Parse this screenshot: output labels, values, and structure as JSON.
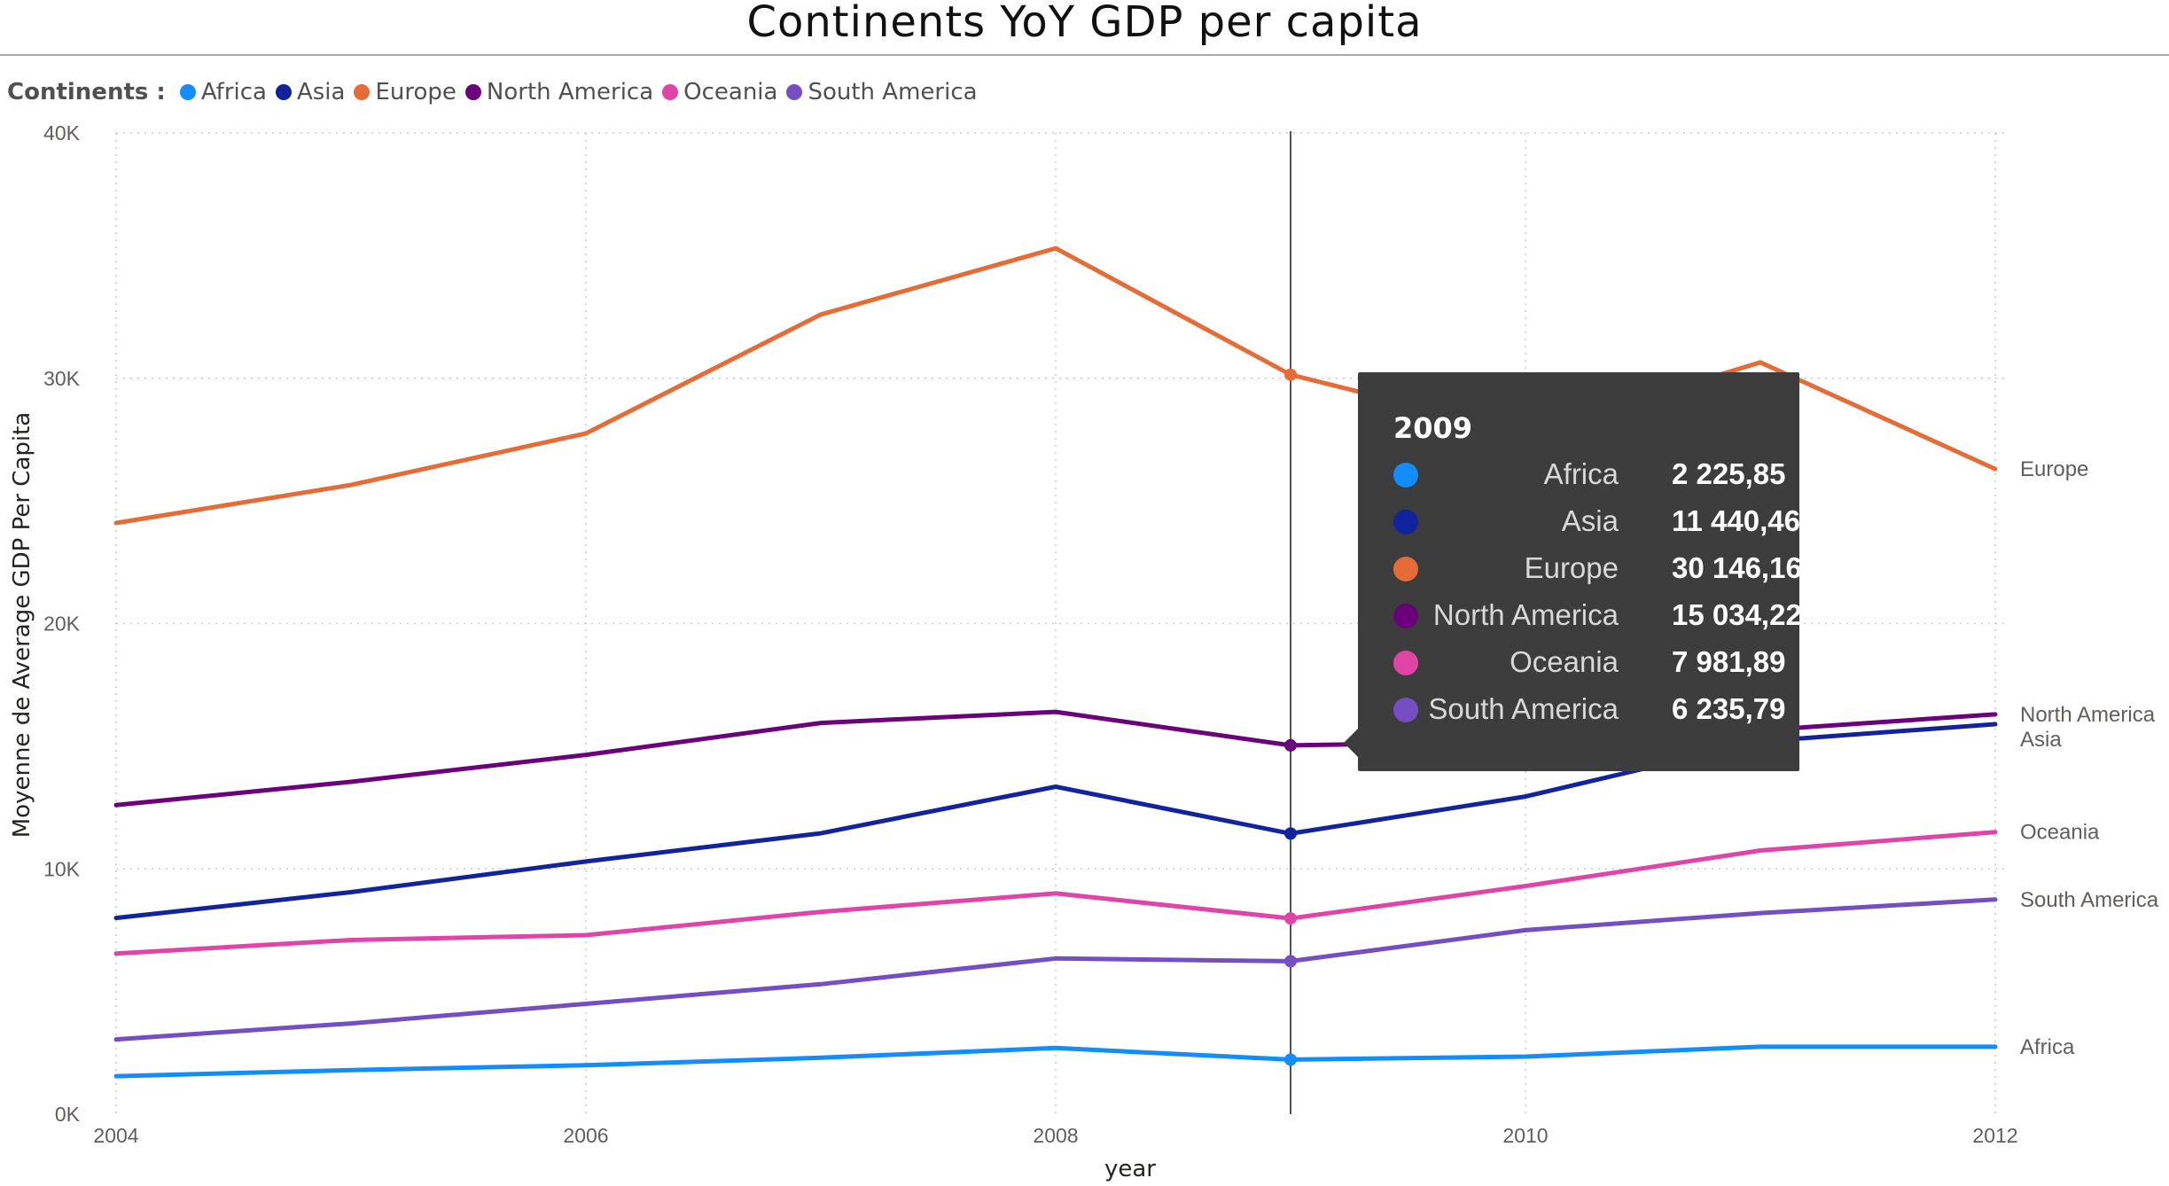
{
  "chart_data": {
    "type": "line",
    "title": "Continents YoY GDP per capita",
    "xlabel": "year",
    "ylabel": "Moyenne de Average GDP Per Capita",
    "legend_title": "Continents :",
    "legend_placement": "top-left",
    "grid": true,
    "xlim": [
      2004,
      2012
    ],
    "ylim": [
      0,
      40000
    ],
    "x_ticks": [
      "2004",
      "2006",
      "2008",
      "2010",
      "2012"
    ],
    "y_ticks": [
      "0K",
      "10K",
      "20K",
      "30K",
      "40K"
    ],
    "x": [
      2004,
      2005,
      2006,
      2007,
      2008,
      2009,
      2010,
      2011,
      2012
    ],
    "series": [
      {
        "name": "Africa",
        "color": "#118dff",
        "values": [
          1550,
          1800,
          2000,
          2300,
          2700,
          2225.85,
          2350,
          2750,
          2750
        ]
      },
      {
        "name": "Asia",
        "color": "#12239e",
        "values": [
          8000,
          9050,
          10300,
          11450,
          13350,
          11440.46,
          12950,
          15200,
          15900
        ]
      },
      {
        "name": "Europe",
        "color": "#e66c37",
        "values": [
          24100,
          25650,
          27750,
          32600,
          35300,
          30146.16,
          27750,
          30650,
          26300
        ]
      },
      {
        "name": "North America",
        "color": "#6b007b",
        "values": [
          12600,
          13550,
          14650,
          15950,
          16400,
          15034.22,
          15200,
          15650,
          16300
        ]
      },
      {
        "name": "Oceania",
        "color": "#e044a7",
        "values": [
          6550,
          7100,
          7300,
          8250,
          9000,
          7981.89,
          9300,
          10750,
          11500
        ]
      },
      {
        "name": "South America",
        "color": "#744ec2",
        "values": [
          3050,
          3700,
          4500,
          5300,
          6350,
          6235.79,
          7500,
          8200,
          8750
        ]
      }
    ],
    "hover_x": 2009,
    "tooltip": {
      "title": "2009",
      "rows": [
        {
          "name": "Africa",
          "value": "2 225,85",
          "color": "#118dff"
        },
        {
          "name": "Asia",
          "value": "11 440,46",
          "color": "#12239e"
        },
        {
          "name": "Europe",
          "value": "30 146,16",
          "color": "#e66c37"
        },
        {
          "name": "North America",
          "value": "15 034,22",
          "color": "#6b007b"
        },
        {
          "name": "Oceania",
          "value": "7 981,89",
          "color": "#e044a7"
        },
        {
          "name": "South America",
          "value": "6 235,79",
          "color": "#744ec2"
        }
      ]
    }
  }
}
